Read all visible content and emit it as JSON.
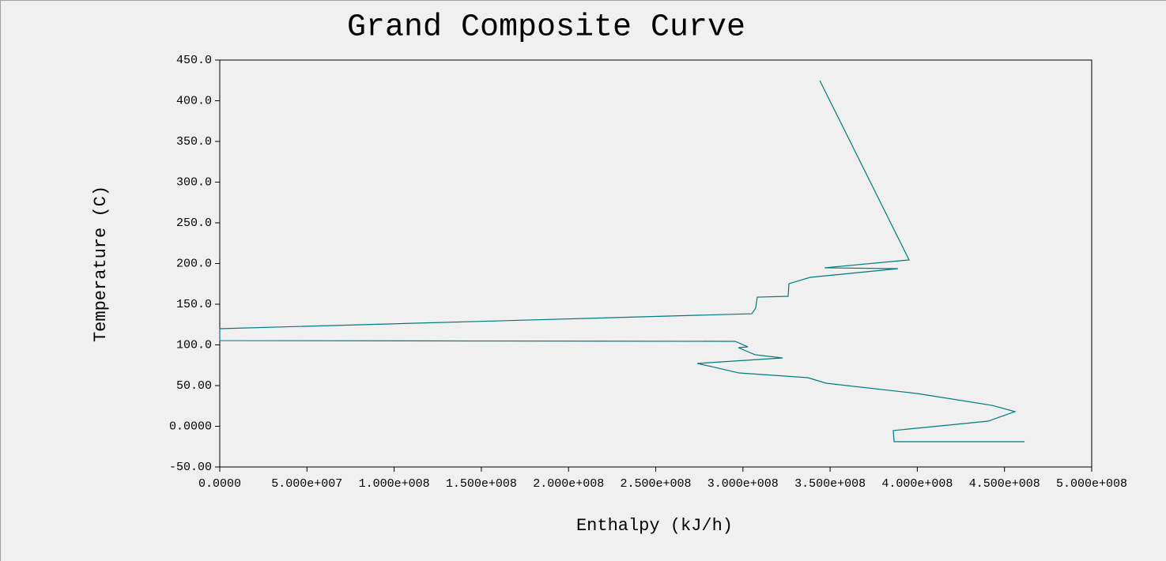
{
  "chart_data": {
    "type": "line",
    "title": "Grand Composite Curve",
    "x_label": "Enthalpy (kJ/h)",
    "y_label": "Temperature (C)",
    "xlim": [
      0,
      500000000
    ],
    "ylim": [
      -50,
      450
    ],
    "xticks": [
      {
        "value": 0,
        "label": "0.0000"
      },
      {
        "value": 50000000,
        "label": "5.000e+007"
      },
      {
        "value": 100000000,
        "label": "1.000e+008"
      },
      {
        "value": 150000000,
        "label": "1.500e+008"
      },
      {
        "value": 200000000,
        "label": "2.000e+008"
      },
      {
        "value": 250000000,
        "label": "2.500e+008"
      },
      {
        "value": 300000000,
        "label": "3.000e+008"
      },
      {
        "value": 350000000,
        "label": "3.500e+008"
      },
      {
        "value": 400000000,
        "label": "4.000e+008"
      },
      {
        "value": 450000000,
        "label": "4.500e+008"
      },
      {
        "value": 500000000,
        "label": "5.000e+008"
      }
    ],
    "yticks": [
      {
        "value": -50,
        "label": "-50.00"
      },
      {
        "value": 0,
        "label": "0.0000"
      },
      {
        "value": 50,
        "label": "50.00"
      },
      {
        "value": 100,
        "label": "100.0"
      },
      {
        "value": 150,
        "label": "150.0"
      },
      {
        "value": 200,
        "label": "200.0"
      },
      {
        "value": 250,
        "label": "250.0"
      },
      {
        "value": 300,
        "label": "300.0"
      },
      {
        "value": 350,
        "label": "350.0"
      },
      {
        "value": 400,
        "label": "400.0"
      },
      {
        "value": 450,
        "label": "450.0"
      }
    ],
    "grid": false,
    "series": [
      {
        "color": "#007b7b",
        "x": [
          344100000,
          395300000,
          346800000,
          388900000,
          338600000,
          326400000,
          325900000,
          308200000,
          307300000,
          305100000,
          0,
          0,
          295600000,
          302800000,
          297400000,
          306900000,
          322800000,
          273800000,
          284200000,
          297800000,
          337300000,
          347700000,
          399800000,
          442900000,
          456000000,
          440600000,
          386200000,
          386700000,
          461500000
        ],
        "values": [
          424.8,
          204.4,
          194.7,
          193.7,
          183.0,
          175.2,
          159.7,
          158.7,
          145.1,
          138.3,
          119.9,
          105.3,
          104.4,
          97.6,
          96.6,
          87.9,
          84.0,
          77.2,
          72.3,
          65.5,
          59.7,
          52.9,
          40.3,
          25.7,
          18.0,
          6.3,
          -5.3,
          -18.9,
          -18.9
        ]
      }
    ]
  }
}
